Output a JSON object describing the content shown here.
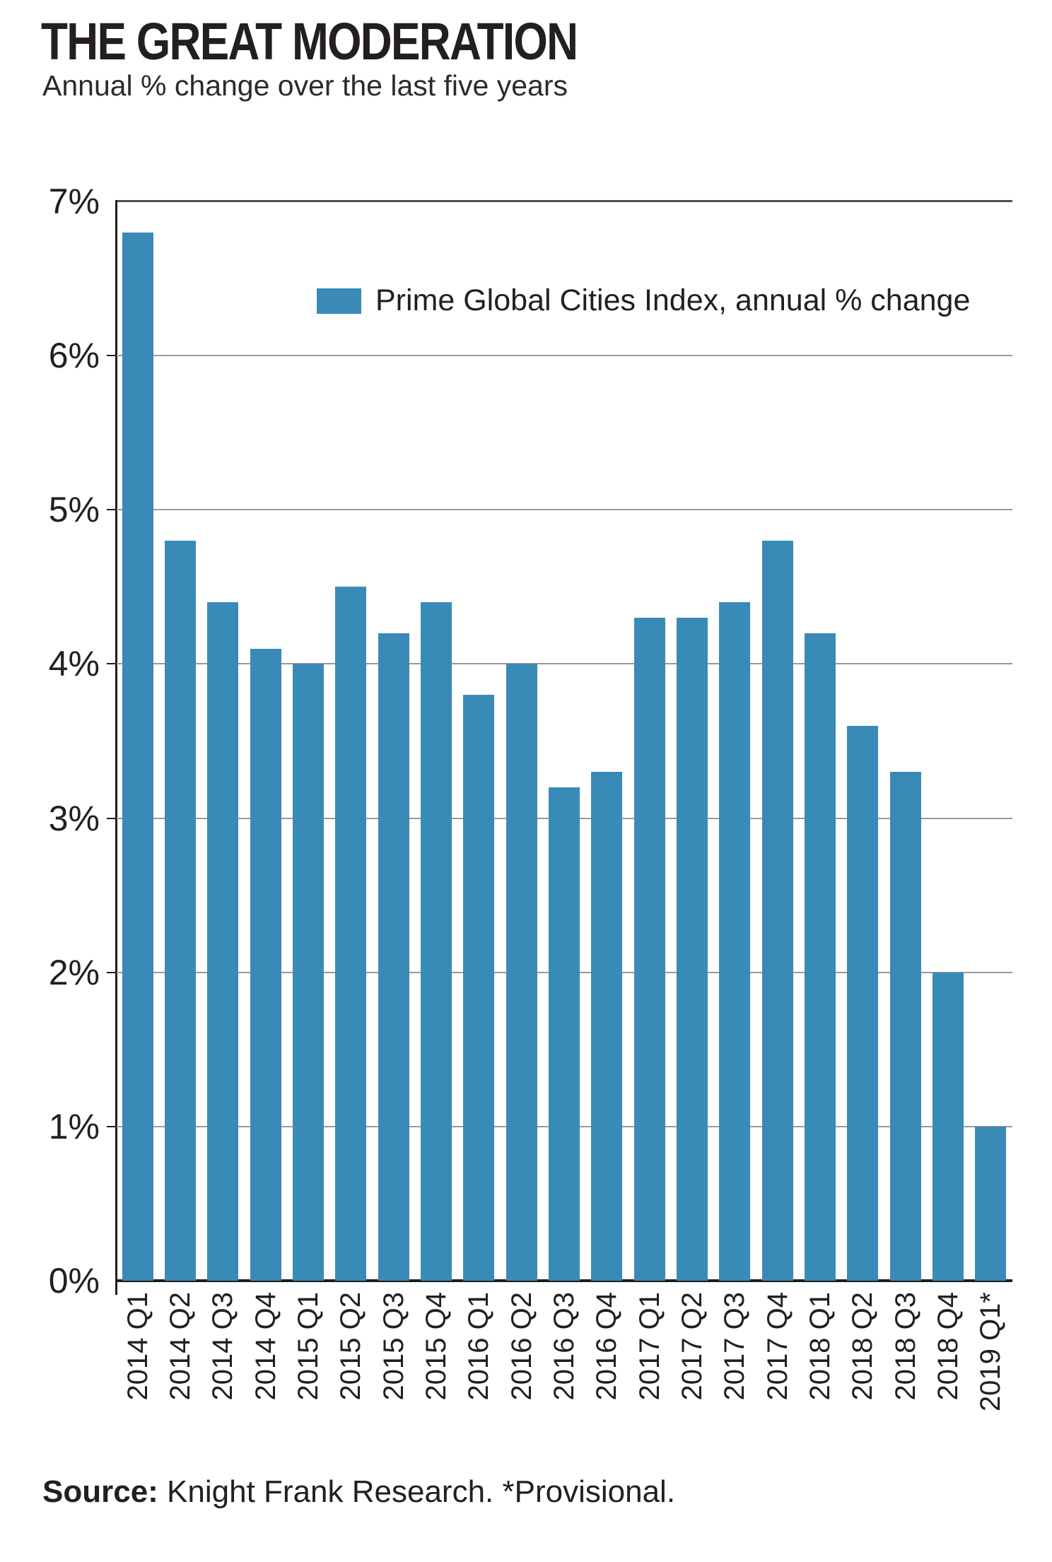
{
  "title": "THE GREAT MODERATION",
  "subtitle": "Annual % change over the last five years",
  "legend": {
    "label": "Prime Global Cities Index, annual % change",
    "swatch_color": "#3a8ab8"
  },
  "source": {
    "prefix": "Source:",
    "text": " Knight Frank Research. *Provisional."
  },
  "chart_data": {
    "type": "bar",
    "title": "THE GREAT MODERATION",
    "subtitle": "Annual % change over the last five years",
    "series_name": "Prime Global Cities Index, annual % change",
    "categories": [
      "2014 Q1",
      "2014 Q2",
      "2014 Q3",
      "2014 Q4",
      "2015 Q1",
      "2015 Q2",
      "2015 Q3",
      "2015 Q4",
      "2016 Q1",
      "2016 Q2",
      "2016 Q3",
      "2016 Q4",
      "2017 Q1",
      "2017 Q2",
      "2017 Q3",
      "2017 Q4",
      "2018 Q1",
      "2018 Q2",
      "2018 Q3",
      "2018 Q4",
      "2019 Q1*"
    ],
    "values": [
      6.8,
      4.8,
      4.4,
      4.1,
      4.0,
      4.5,
      4.2,
      4.4,
      3.8,
      4.0,
      3.2,
      3.3,
      4.3,
      4.3,
      4.4,
      4.8,
      4.2,
      3.6,
      3.3,
      2.0,
      1.0
    ],
    "bar_color": "#3a8ab8",
    "xlabel": "",
    "ylabel": "",
    "ylim": [
      0,
      7
    ],
    "ytick_labels": [
      "0%",
      "1%",
      "2%",
      "3%",
      "4%",
      "5%",
      "6%",
      "7%"
    ],
    "grid": true,
    "legend_position": "inside-top-right"
  }
}
